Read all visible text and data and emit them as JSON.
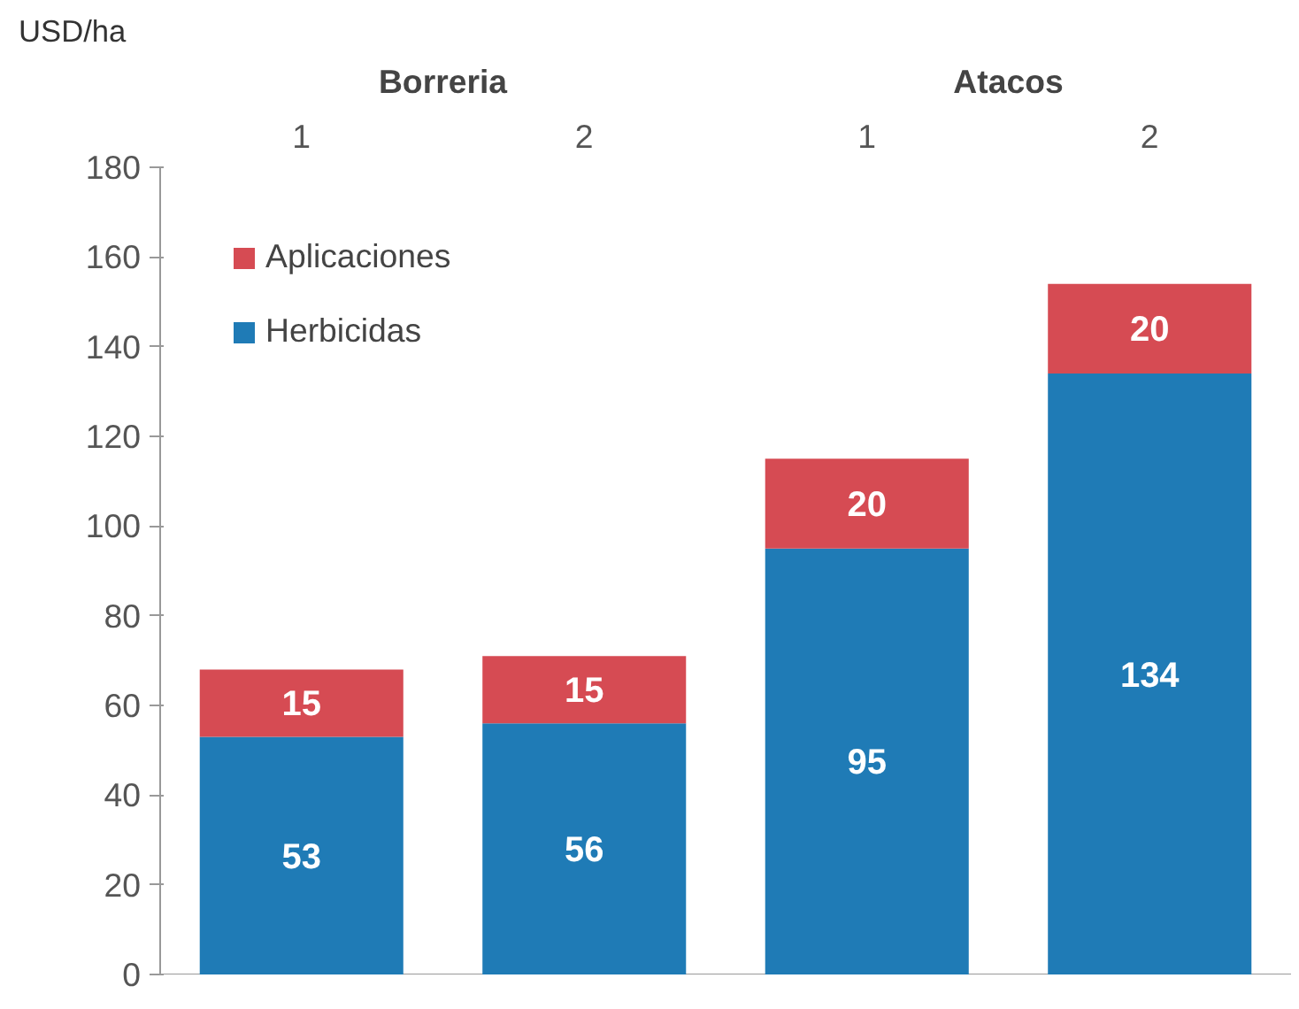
{
  "chart_data": {
    "type": "bar",
    "stacked": true,
    "ylabel": "USD/ha",
    "categories": [
      "1",
      "2",
      "1",
      "2"
    ],
    "annotations": [
      "Borreria",
      "Atacos"
    ],
    "series": [
      {
        "name": "Herbicidas",
        "color": "#1f7bb6",
        "values": [
          53,
          56,
          95,
          134
        ]
      },
      {
        "name": "Aplicaciones",
        "color": "#d64b53",
        "values": [
          15,
          15,
          20,
          20
        ]
      }
    ],
    "data_labels": true,
    "ylim": [
      0,
      180
    ],
    "yticks": [
      0,
      20,
      40,
      60,
      80,
      100,
      120,
      140,
      160,
      180
    ],
    "grid": false,
    "legend": "top left"
  }
}
